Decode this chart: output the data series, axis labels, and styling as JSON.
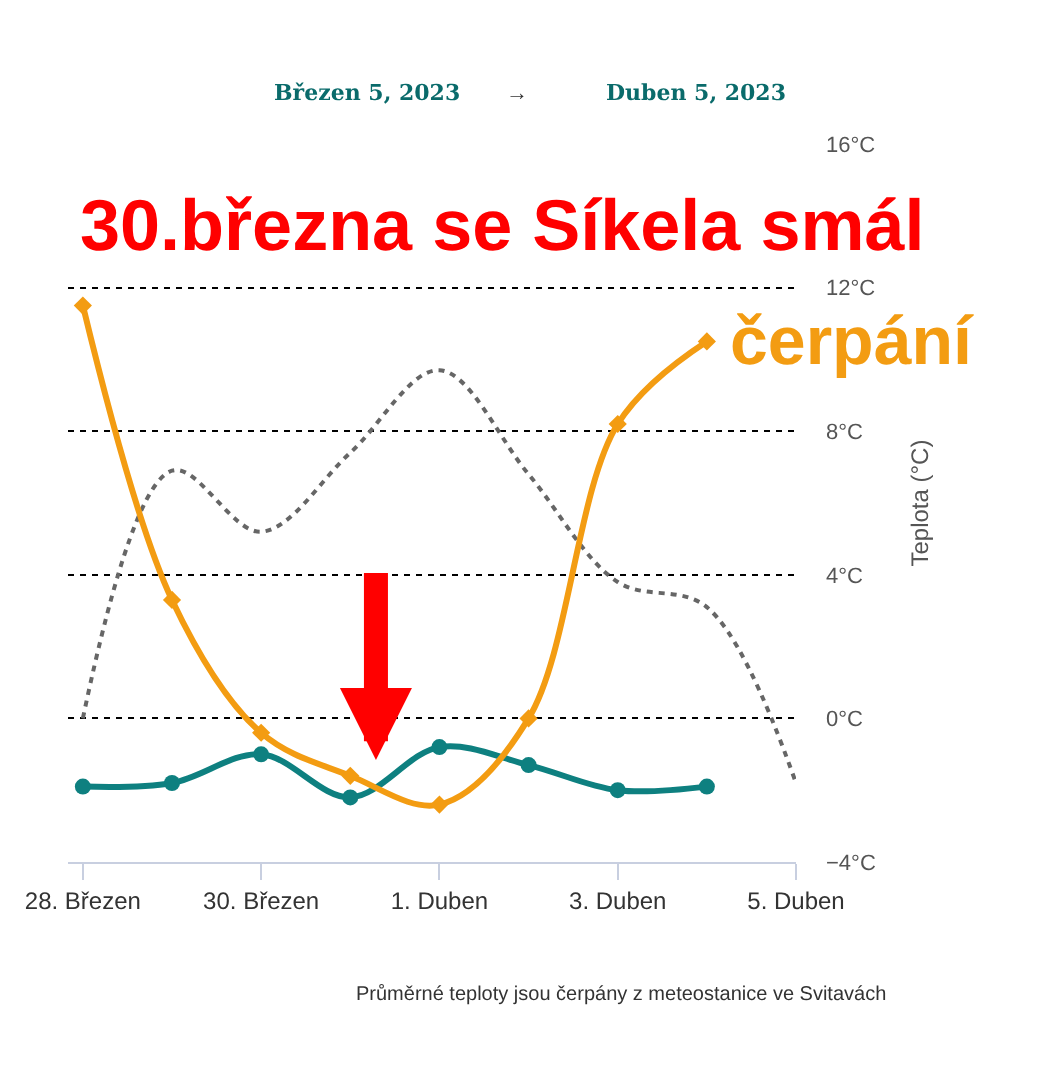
{
  "chart_data": {
    "type": "line",
    "title": "30.března se Síkela smál",
    "ylabel": "Teplota (°C)",
    "annotations": [
      "Březen 5, 2023",
      "→",
      "Duben 5, 2023",
      "Průměrné teploty jsou čerpány z meteostanice ve Svitavách"
    ],
    "x": [
      "2023-03-28",
      "2023-03-29",
      "2023-03-30",
      "2023-03-31",
      "2023-04-01",
      "2023-04-02",
      "2023-04-03",
      "2023-04-04"
    ],
    "series": [
      {
        "color": "#666666",
        "line_style": "dotted",
        "marker": "none",
        "x": [
          "2023-03-28",
          "2023-03-29",
          "2023-03-30",
          "2023-03-31",
          "2023-04-01",
          "2023-04-02",
          "2023-04-03",
          "2023-04-04",
          "2023-04-05"
        ],
        "values": [
          0,
          6.9,
          5.2,
          7.4,
          9.7,
          6.8,
          3.8,
          3.1,
          -1.8
        ]
      },
      {
        "color": "#0e8080",
        "line_style": "solid",
        "marker": "circle",
        "values": [
          -1.9,
          -1.8,
          -1,
          -2.2,
          -0.8,
          -1.3,
          -2,
          -1.9
        ]
      },
      {
        "name": "čerpání",
        "color": "#f39c12",
        "line_style": "solid",
        "marker": "diamond",
        "values": [
          11.5,
          3.3,
          -0.4,
          -1.6,
          -2.4,
          0,
          8.2,
          10.5
        ]
      }
    ],
    "xlim": [
      "2023-03-27T20:00",
      "2023-04-05"
    ],
    "xticks": [
      {
        "value": "2023-03-28",
        "label": "28. Březen"
      },
      {
        "value": "2023-03-30",
        "label": "30. Březen"
      },
      {
        "value": "2023-04-01",
        "label": "1. Duben"
      },
      {
        "value": "2023-04-03",
        "label": "3. Duben"
      },
      {
        "value": "2023-04-05",
        "label": "5. Duben"
      }
    ],
    "ylim": [
      -4,
      16
    ],
    "yticks": [
      {
        "value": -4,
        "label": "−4°C"
      },
      {
        "value": 0,
        "label": "0°C"
      },
      {
        "value": 4,
        "label": "4°C"
      },
      {
        "value": 8,
        "label": "8°C"
      },
      {
        "value": 12,
        "label": "12°C"
      },
      {
        "value": 16,
        "label": "16°C"
      }
    ],
    "grid": "y",
    "legend": false
  }
}
